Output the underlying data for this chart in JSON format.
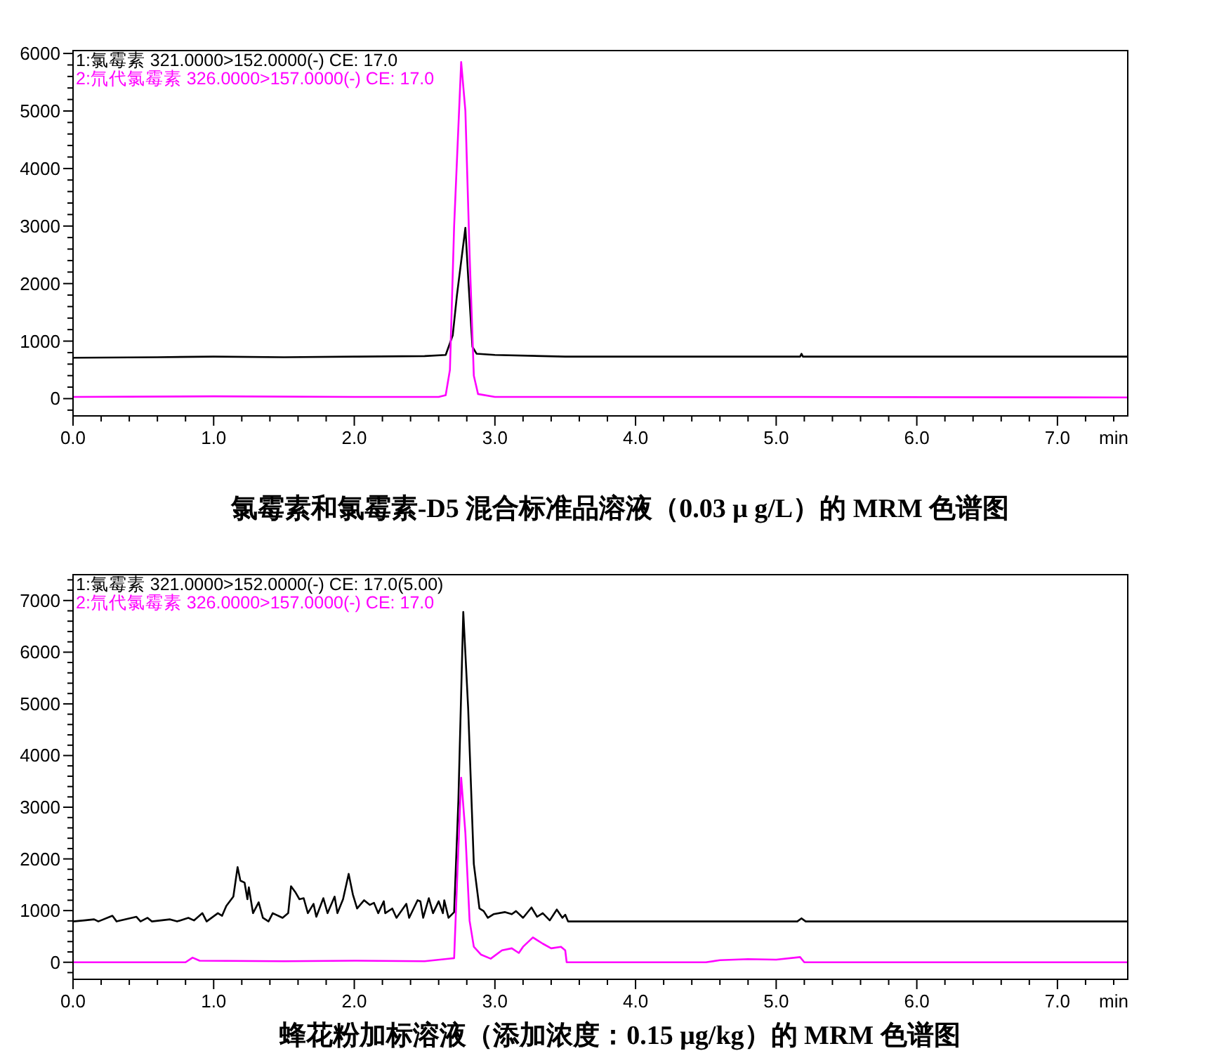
{
  "chart_data": [
    {
      "type": "line",
      "title": "氯霉素和氯霉素-D5 混合标准品溶液（0.03 μ g/L）的 MRM 色谱图",
      "xlabel": "min",
      "legend": "top left",
      "grid": false,
      "marker": "none",
      "line_style": "solid",
      "xlim": [
        0,
        7.5
      ],
      "ylim": [
        -300,
        6050
      ],
      "xticks": [
        {
          "value": 0,
          "label": "0.0"
        },
        {
          "value": 1,
          "label": "1.0"
        },
        {
          "value": 2,
          "label": "2.0"
        },
        {
          "value": 3,
          "label": "3.0"
        },
        {
          "value": 4,
          "label": "4.0"
        },
        {
          "value": 5,
          "label": "5.0"
        },
        {
          "value": 6,
          "label": "6.0"
        },
        {
          "value": 7,
          "label": "7.0"
        },
        {
          "value": 0.2,
          "label": null
        },
        {
          "value": 0.4,
          "label": null
        },
        {
          "value": 0.6,
          "label": null
        },
        {
          "value": 0.8,
          "label": null
        },
        {
          "value": 1.2,
          "label": null
        },
        {
          "value": 1.4,
          "label": null
        },
        {
          "value": 1.6,
          "label": null
        },
        {
          "value": 1.8,
          "label": null
        },
        {
          "value": 2.2,
          "label": null
        },
        {
          "value": 2.4,
          "label": null
        },
        {
          "value": 2.6,
          "label": null
        },
        {
          "value": 2.8,
          "label": null
        },
        {
          "value": 3.2,
          "label": null
        },
        {
          "value": 3.4,
          "label": null
        },
        {
          "value": 3.6,
          "label": null
        },
        {
          "value": 3.8,
          "label": null
        },
        {
          "value": 4.2,
          "label": null
        },
        {
          "value": 4.4,
          "label": null
        },
        {
          "value": 4.6,
          "label": null
        },
        {
          "value": 4.8,
          "label": null
        },
        {
          "value": 5.2,
          "label": null
        },
        {
          "value": 5.4,
          "label": null
        },
        {
          "value": 5.6,
          "label": null
        },
        {
          "value": 5.8,
          "label": null
        },
        {
          "value": 6.2,
          "label": null
        },
        {
          "value": 6.4,
          "label": null
        },
        {
          "value": 6.6,
          "label": null
        },
        {
          "value": 6.8,
          "label": null
        },
        {
          "value": 7.2,
          "label": null
        },
        {
          "value": 7.4,
          "label": null
        }
      ],
      "yticks": [
        0,
        1000,
        2000,
        3000,
        4000,
        5000,
        6000,
        {
          "value": -200,
          "label": null
        },
        {
          "value": 200,
          "label": null
        },
        {
          "value": 400,
          "label": null
        },
        {
          "value": 600,
          "label": null
        },
        {
          "value": 800,
          "label": null
        },
        {
          "value": 1200,
          "label": null
        },
        {
          "value": 1400,
          "label": null
        },
        {
          "value": 1600,
          "label": null
        },
        {
          "value": 1800,
          "label": null
        },
        {
          "value": 2200,
          "label": null
        },
        {
          "value": 2400,
          "label": null
        },
        {
          "value": 2600,
          "label": null
        },
        {
          "value": 2800,
          "label": null
        },
        {
          "value": 3200,
          "label": null
        },
        {
          "value": 3400,
          "label": null
        },
        {
          "value": 3600,
          "label": null
        },
        {
          "value": 3800,
          "label": null
        },
        {
          "value": 4200,
          "label": null
        },
        {
          "value": 4400,
          "label": null
        },
        {
          "value": 4600,
          "label": null
        },
        {
          "value": 4800,
          "label": null
        },
        {
          "value": 5200,
          "label": null
        },
        {
          "value": 5400,
          "label": null
        },
        {
          "value": 5600,
          "label": null
        },
        {
          "value": 5800,
          "label": null
        }
      ],
      "series": [
        {
          "name": "1:氯霉素 321.0000>152.0000(-) CE: 17.0",
          "color": "#000000",
          "x": [
            0,
            0.6,
            1.0,
            1.5,
            2.0,
            2.5,
            2.65,
            2.7,
            2.73,
            2.79,
            2.81,
            2.84,
            2.87,
            3.0,
            3.5,
            5.17,
            5.18,
            5.19,
            7.5
          ],
          "values": [
            710,
            720,
            730,
            720,
            730,
            740,
            760,
            1100,
            1800,
            2970,
            2100,
            900,
            780,
            760,
            730,
            730,
            780,
            730,
            730
          ]
        },
        {
          "name": "2:氘代氯霉素 326.0000>157.0000(-) CE: 17.0",
          "color": "#ff00ff",
          "x": [
            0,
            1.0,
            2.0,
            2.6,
            2.65,
            2.68,
            2.71,
            2.76,
            2.79,
            2.82,
            2.85,
            2.88,
            3.0,
            5.18,
            7.5
          ],
          "values": [
            30,
            40,
            30,
            30,
            60,
            500,
            3000,
            5850,
            5000,
            2500,
            400,
            80,
            30,
            30,
            20
          ]
        }
      ]
    },
    {
      "type": "line",
      "title": "蜂花粉加标溶液（添加浓度：0.15 μg/kg）的 MRM 色谱图",
      "xlabel": "min",
      "legend": "top left",
      "grid": false,
      "marker": "none",
      "line_style": "solid",
      "xlim": [
        0,
        7.5
      ],
      "ylim": [
        -330,
        7500
      ],
      "xticks": [
        {
          "value": 0,
          "label": "0.0"
        },
        {
          "value": 1,
          "label": "1.0"
        },
        {
          "value": 2,
          "label": "2.0"
        },
        {
          "value": 3,
          "label": "3.0"
        },
        {
          "value": 4,
          "label": "4.0"
        },
        {
          "value": 5,
          "label": "5.0"
        },
        {
          "value": 6,
          "label": "6.0"
        },
        {
          "value": 7,
          "label": "7.0"
        },
        {
          "value": 0.2,
          "label": null
        },
        {
          "value": 0.4,
          "label": null
        },
        {
          "value": 0.6,
          "label": null
        },
        {
          "value": 0.8,
          "label": null
        },
        {
          "value": 1.2,
          "label": null
        },
        {
          "value": 1.4,
          "label": null
        },
        {
          "value": 1.6,
          "label": null
        },
        {
          "value": 1.8,
          "label": null
        },
        {
          "value": 2.2,
          "label": null
        },
        {
          "value": 2.4,
          "label": null
        },
        {
          "value": 2.6,
          "label": null
        },
        {
          "value": 2.8,
          "label": null
        },
        {
          "value": 3.2,
          "label": null
        },
        {
          "value": 3.4,
          "label": null
        },
        {
          "value": 3.6,
          "label": null
        },
        {
          "value": 3.8,
          "label": null
        },
        {
          "value": 4.2,
          "label": null
        },
        {
          "value": 4.4,
          "label": null
        },
        {
          "value": 4.6,
          "label": null
        },
        {
          "value": 4.8,
          "label": null
        },
        {
          "value": 5.2,
          "label": null
        },
        {
          "value": 5.4,
          "label": null
        },
        {
          "value": 5.6,
          "label": null
        },
        {
          "value": 5.8,
          "label": null
        },
        {
          "value": 6.2,
          "label": null
        },
        {
          "value": 6.4,
          "label": null
        },
        {
          "value": 6.6,
          "label": null
        },
        {
          "value": 6.8,
          "label": null
        },
        {
          "value": 7.2,
          "label": null
        },
        {
          "value": 7.4,
          "label": null
        }
      ],
      "yticks": [
        0,
        1000,
        2000,
        3000,
        4000,
        5000,
        6000,
        7000,
        {
          "value": -200,
          "label": null
        },
        {
          "value": 200,
          "label": null
        },
        {
          "value": 400,
          "label": null
        },
        {
          "value": 600,
          "label": null
        },
        {
          "value": 800,
          "label": null
        },
        {
          "value": 1200,
          "label": null
        },
        {
          "value": 1400,
          "label": null
        },
        {
          "value": 1600,
          "label": null
        },
        {
          "value": 1800,
          "label": null
        },
        {
          "value": 2200,
          "label": null
        },
        {
          "value": 2400,
          "label": null
        },
        {
          "value": 2600,
          "label": null
        },
        {
          "value": 2800,
          "label": null
        },
        {
          "value": 3200,
          "label": null
        },
        {
          "value": 3400,
          "label": null
        },
        {
          "value": 3600,
          "label": null
        },
        {
          "value": 3800,
          "label": null
        },
        {
          "value": 4200,
          "label": null
        },
        {
          "value": 4400,
          "label": null
        },
        {
          "value": 4600,
          "label": null
        },
        {
          "value": 4800,
          "label": null
        },
        {
          "value": 5200,
          "label": null
        },
        {
          "value": 5400,
          "label": null
        },
        {
          "value": 5600,
          "label": null
        },
        {
          "value": 5800,
          "label": null
        },
        {
          "value": 6200,
          "label": null
        },
        {
          "value": 6400,
          "label": null
        },
        {
          "value": 6600,
          "label": null
        },
        {
          "value": 6800,
          "label": null
        },
        {
          "value": 7200,
          "label": null
        },
        {
          "value": 7400,
          "label": null
        }
      ],
      "series": [
        {
          "name": "1:氯霉素 321.0000>152.0000(-) CE: 17.0(5.00)",
          "color": "#000000",
          "x": [
            0,
            0.08,
            0.15,
            0.18,
            0.28,
            0.31,
            0.45,
            0.48,
            0.53,
            0.56,
            0.69,
            0.74,
            0.82,
            0.86,
            0.92,
            0.95,
            1.03,
            1.06,
            1.09,
            1.14,
            1.17,
            1.19,
            1.22,
            1.24,
            1.25,
            1.28,
            1.32,
            1.35,
            1.39,
            1.42,
            1.49,
            1.53,
            1.55,
            1.58,
            1.61,
            1.64,
            1.67,
            1.71,
            1.73,
            1.78,
            1.81,
            1.86,
            1.88,
            1.92,
            1.96,
            1.99,
            2.02,
            2.07,
            2.11,
            2.14,
            2.17,
            2.21,
            2.22,
            2.27,
            2.3,
            2.37,
            2.39,
            2.45,
            2.47,
            2.49,
            2.53,
            2.56,
            2.6,
            2.63,
            2.64,
            2.67,
            2.71,
            2.74,
            2.775,
            2.81,
            2.85,
            2.89,
            2.92,
            2.95,
            2.99,
            3.07,
            3.12,
            3.15,
            3.2,
            3.26,
            3.3,
            3.34,
            3.39,
            3.44,
            3.48,
            3.5,
            3.52,
            5.15,
            5.18,
            5.21,
            7.5
          ],
          "values": [
            790,
            810,
            830,
            790,
            900,
            790,
            880,
            790,
            860,
            790,
            830,
            790,
            860,
            810,
            950,
            790,
            950,
            900,
            1090,
            1270,
            1840,
            1580,
            1540,
            1220,
            1450,
            950,
            1160,
            860,
            790,
            950,
            860,
            950,
            1470,
            1360,
            1220,
            1240,
            950,
            1130,
            880,
            1240,
            950,
            1270,
            950,
            1220,
            1710,
            1310,
            1040,
            1200,
            1110,
            1150,
            950,
            1180,
            950,
            1040,
            860,
            1130,
            860,
            1200,
            1180,
            860,
            1240,
            950,
            1180,
            950,
            1200,
            860,
            970,
            3120,
            6780,
            4900,
            1900,
            1040,
            990,
            860,
            930,
            970,
            930,
            990,
            860,
            1060,
            880,
            950,
            810,
            1020,
            860,
            920,
            790,
            790,
            850,
            790,
            790
          ]
        },
        {
          "name": "2:氘代氯霉素 326.0000>157.0000(-) CE: 17.0",
          "color": "#ff00ff",
          "x": [
            0,
            0.8,
            0.85,
            0.9,
            1.5,
            2.0,
            2.5,
            2.68,
            2.71,
            2.73,
            2.76,
            2.79,
            2.82,
            2.85,
            2.9,
            2.97,
            3.05,
            3.12,
            3.17,
            3.2,
            3.27,
            3.34,
            3.4,
            3.47,
            3.5,
            3.51,
            4.5,
            4.6,
            4.8,
            5.0,
            5.17,
            5.2,
            7.5
          ],
          "values": [
            0,
            0,
            90,
            30,
            20,
            30,
            20,
            70,
            80,
            1500,
            3570,
            2500,
            800,
            300,
            150,
            70,
            230,
            270,
            180,
            300,
            480,
            360,
            270,
            300,
            230,
            0,
            0,
            40,
            60,
            50,
            100,
            0,
            0
          ]
        }
      ]
    }
  ]
}
